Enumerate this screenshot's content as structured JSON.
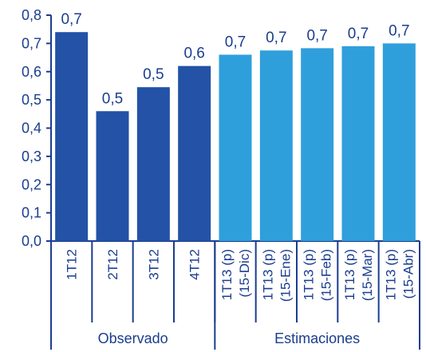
{
  "chart_data": {
    "type": "bar",
    "ylim": [
      0,
      0.8
    ],
    "yticks": [
      "0,0",
      "0,1",
      "0,2",
      "0,3",
      "0,4",
      "0,5",
      "0,6",
      "0,7",
      "0,8"
    ],
    "ytick_values": [
      0,
      0.1,
      0.2,
      0.3,
      0.4,
      0.5,
      0.6,
      0.7,
      0.8
    ],
    "grid": false,
    "categories": [
      [
        "1T12"
      ],
      [
        "2T12"
      ],
      [
        "3T12"
      ],
      [
        "4T12"
      ],
      [
        "1T13 (p)",
        "(15-Dic)"
      ],
      [
        "1T13 (p)",
        "(15-Ene)"
      ],
      [
        "1T13 (p)",
        "(15-Feb)"
      ],
      [
        "1T13 (p)",
        "(15-Mar)"
      ],
      [
        "1T13 (p)",
        "(15-Abr)"
      ]
    ],
    "values": [
      0.74,
      0.46,
      0.545,
      0.62,
      0.66,
      0.675,
      0.683,
      0.69,
      0.7
    ],
    "data_labels": [
      "0,7",
      "0,5",
      "0,5",
      "0,6",
      "0,7",
      "0,7",
      "0,7",
      "0,7",
      "0,7"
    ],
    "groups": [
      {
        "label": "Observado",
        "count": 4,
        "color": "#2352a6"
      },
      {
        "label": "Estimaciones",
        "count": 5,
        "color": "#2f9fdc"
      }
    ],
    "axis_color": "#1a3d8f"
  }
}
